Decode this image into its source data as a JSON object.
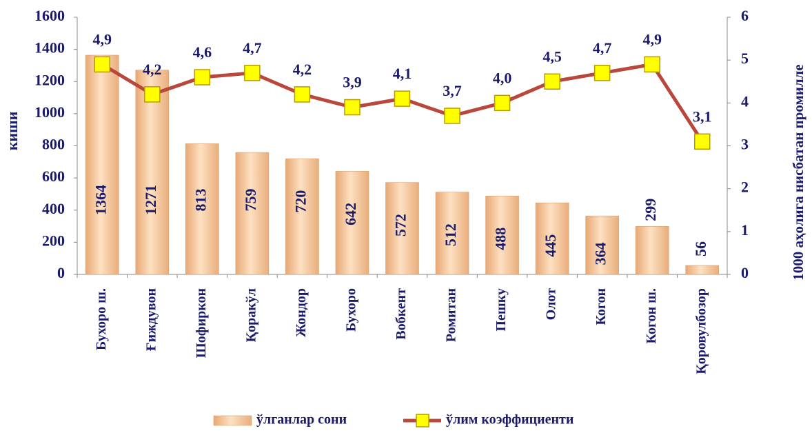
{
  "chart_data": {
    "type": "bar_line",
    "categories": [
      "Бухоро ш.",
      "Ғиждувон",
      "Шофиркон",
      "Қоракўл",
      "Жондор",
      "Бухоро",
      "Вобкент",
      "Ромитан",
      "Пешку",
      "Олот",
      "Когон",
      "Когон ш.",
      "Қоровулбозор"
    ],
    "series": [
      {
        "name": "ўлганлар сони",
        "type": "bar",
        "color": "#f2c08e",
        "values": [
          1364,
          1271,
          813,
          759,
          720,
          642,
          572,
          512,
          488,
          445,
          364,
          299,
          56
        ]
      },
      {
        "name": "ўлим коэффициенти",
        "type": "line",
        "axis": "y2",
        "color": "#b9473c",
        "marker_color": "#ffff00",
        "values": [
          4.9,
          4.2,
          4.6,
          4.7,
          4.2,
          3.9,
          4.1,
          3.7,
          4.0,
          4.5,
          4.7,
          4.9,
          3.1
        ],
        "value_labels": [
          "4,9",
          "4,2",
          "4,6",
          "4,7",
          "4,2",
          "3,9",
          "4,1",
          "3,7",
          "4,0",
          "4,5",
          "4,7",
          "4,9",
          "3,1"
        ]
      }
    ],
    "ylabel": "киши",
    "y2label": "1000 аҳолига нисбатан промилле",
    "ylim": [
      0,
      1600
    ],
    "yticks": [
      0,
      200,
      400,
      600,
      800,
      1000,
      1200,
      1400,
      1600
    ],
    "y2lim": [
      0,
      6
    ],
    "y2ticks": [
      0,
      1,
      2,
      3,
      4,
      5,
      6
    ],
    "legend": "bottom"
  }
}
